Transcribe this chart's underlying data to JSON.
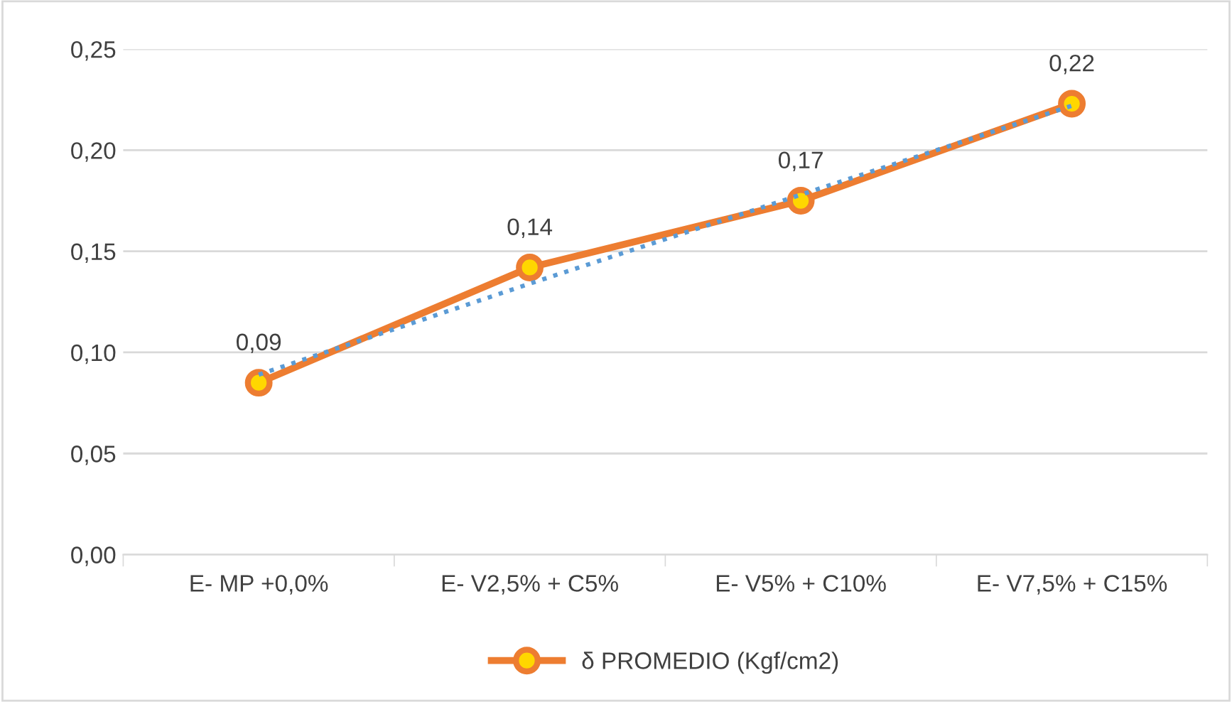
{
  "chart_data": {
    "type": "line",
    "categories": [
      "E- MP +0,0%",
      "E- V2,5% + C5%",
      "E- V5% + C10%",
      "E- V7,5% + C15%"
    ],
    "series": [
      {
        "name": "δ PROMEDIO (Kgf/cm2)",
        "color": "#ed7d31",
        "values": [
          0.085,
          0.142,
          0.175,
          0.223
        ],
        "value_labels": [
          "0,09",
          "0,14",
          "0,17",
          "0,22"
        ],
        "marker": "circle",
        "line_style": "solid"
      },
      {
        "type": "line",
        "color": "#5b9bd5",
        "values": [
          0.089,
          0.134,
          0.178,
          0.222
        ],
        "line_style": "dotted",
        "marker": "none"
      }
    ],
    "ylim": [
      0,
      0.25
    ],
    "yticks": [
      {
        "value": 0,
        "label": "0,00"
      },
      {
        "value": 0.05,
        "label": "0,05"
      },
      {
        "value": 0.1,
        "label": "0,10"
      },
      {
        "value": 0.15,
        "label": "0,15"
      },
      {
        "value": 0.2,
        "label": "0,20"
      },
      {
        "value": 0.25,
        "label": "0,25"
      }
    ],
    "grid": "y",
    "legend": "bottom"
  }
}
